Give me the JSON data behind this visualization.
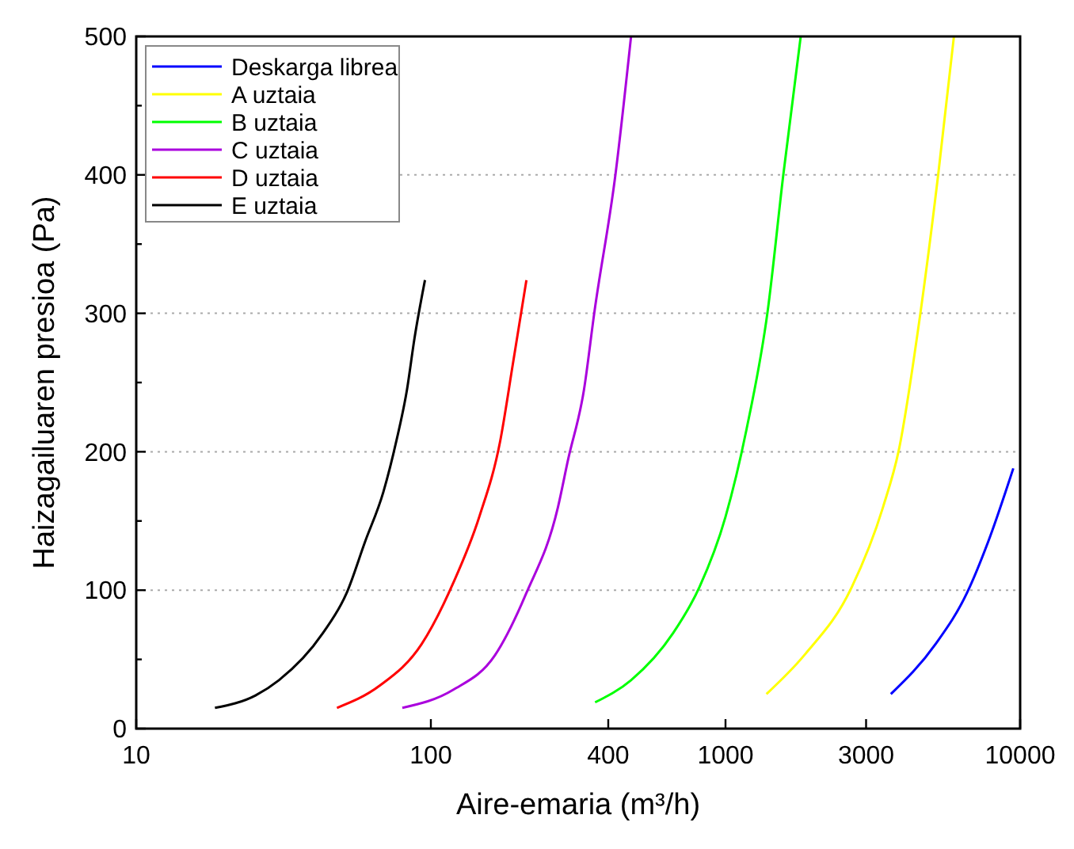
{
  "chart_data": {
    "type": "line",
    "xlabel": "Aire-emaria (m³/h)",
    "ylabel": "Haizagailuaren presioa (Pa)",
    "log": "x",
    "grid": "y",
    "legend": "top left",
    "marker": "none",
    "line_style": "solid",
    "xlim": [
      10,
      10000
    ],
    "xticks": [
      10,
      100,
      400,
      1000,
      3000,
      10000
    ],
    "ylim": [
      0,
      500
    ],
    "yticks": [
      0,
      {
        "value": 50,
        "label": null
      },
      100,
      {
        "value": 150,
        "label": null
      },
      200,
      {
        "value": 250,
        "label": null
      },
      300,
      {
        "value": 350,
        "label": null
      },
      400,
      {
        "value": 450,
        "label": null
      },
      500
    ],
    "series": [
      {
        "name": "Deskarga librea",
        "color": "#0000ff",
        "x": [
          3640,
          5160,
          6600,
          7790,
          9480
        ],
        "values": [
          25,
          61,
          98,
          135,
          188
        ]
      },
      {
        "name": "A uztaia",
        "color": "#ffff00",
        "x": [
          1377,
          1850,
          2680,
          3425,
          3873,
          4565,
          5270,
          5960
        ],
        "values": [
          25,
          53,
          102,
          160,
          201,
          297,
          400,
          500
        ]
      },
      {
        "name": "B uztaia",
        "color": "#00ff00",
        "x": [
          361,
          478,
          664,
          815,
          1000,
          1178,
          1389,
          1571,
          1800
        ],
        "values": [
          19,
          35,
          69,
          102,
          153,
          216,
          301,
          400,
          500
        ]
      },
      {
        "name": "C uztaia",
        "color": "#aa00dd",
        "x": [
          80,
          119,
          165,
          211,
          270,
          292,
          331,
          359,
          423,
          478
        ],
        "values": [
          15,
          28,
          53,
          98,
          160,
          194,
          245,
          301,
          400,
          500
        ]
      },
      {
        "name": "D uztaia",
        "color": "#ff0000",
        "x": [
          48,
          67,
          93,
          119,
          146,
          172,
          190,
          211
        ],
        "values": [
          15,
          31,
          61,
          105,
          153,
          208,
          264,
          324
        ]
      },
      {
        "name": "E uztaia",
        "color": "#000000",
        "x": [
          18.5,
          25.4,
          30.5,
          43,
          51.8,
          59.8,
          69,
          76.4,
          83,
          88,
          95.5
        ],
        "values": [
          15,
          24,
          35,
          69,
          98,
          135,
          171,
          208,
          245,
          282,
          324
        ]
      }
    ]
  }
}
